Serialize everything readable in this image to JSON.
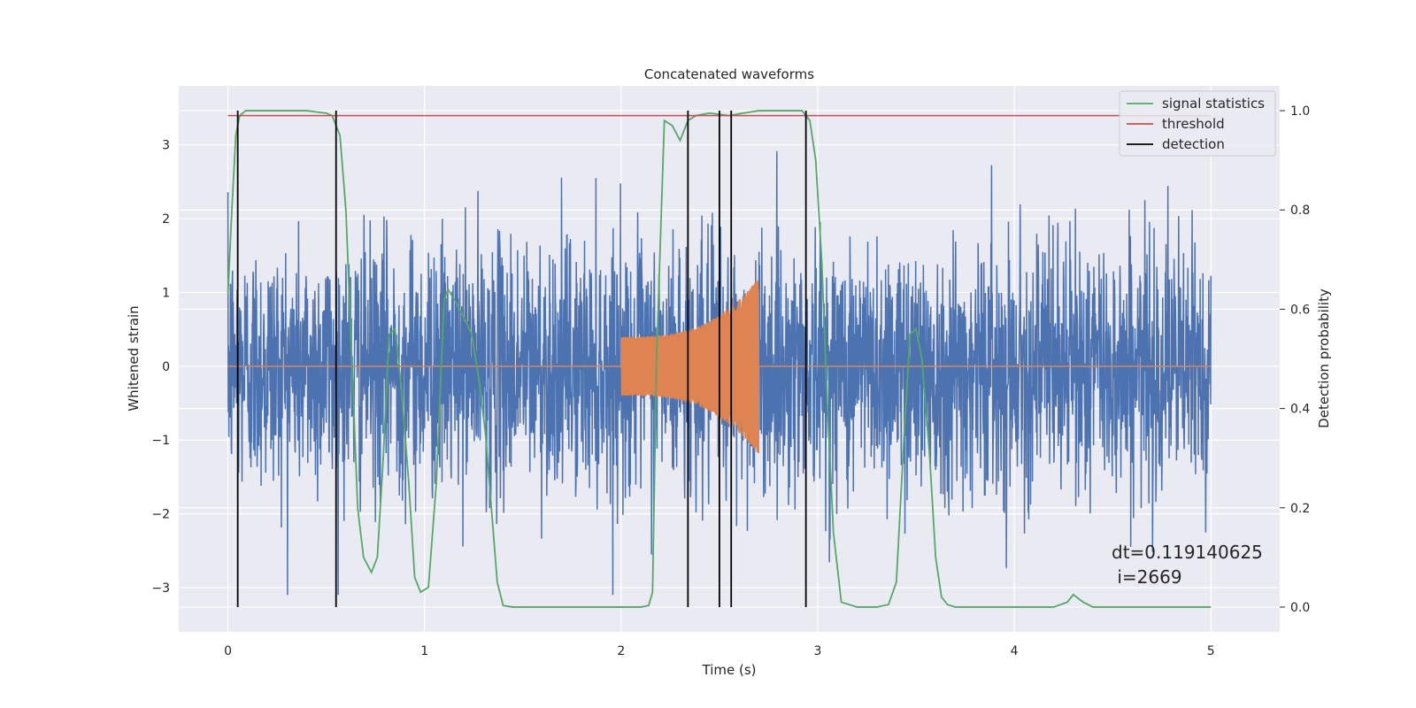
{
  "chart_data": {
    "type": "line",
    "title": "Concatenated waveforms",
    "xlabel": "Time (s)",
    "ylabel": "Whitened strain",
    "y2label": "Detection probability",
    "xlim": [
      -0.25,
      5.35
    ],
    "ylim": [
      -3.6,
      3.8
    ],
    "y2lim": [
      -0.05,
      1.05
    ],
    "xticks": [
      0,
      1,
      2,
      3,
      4,
      5
    ],
    "xtick_labels": [
      "0",
      "1",
      "2",
      "3",
      "4",
      "5"
    ],
    "yticks": [
      -3,
      -2,
      -1,
      0,
      1,
      2,
      3
    ],
    "ytick_labels": [
      "−3",
      "−2",
      "−1",
      "0",
      "1",
      "2",
      "3"
    ],
    "y2ticks": [
      0.0,
      0.2,
      0.4,
      0.6,
      0.8,
      1.0
    ],
    "y2tick_labels": [
      "0.0",
      "0.2",
      "0.4",
      "0.6",
      "0.8",
      "1.0"
    ],
    "grid": true,
    "legend_position": "top-right",
    "legend": [
      {
        "label": "signal statistics",
        "color": "#55a868"
      },
      {
        "label": "threshold",
        "color": "#c44e52"
      },
      {
        "label": "detection",
        "color": "#000000"
      }
    ],
    "series": [
      {
        "name": "whitened strain (noise)",
        "axis": "left",
        "color": "#4c72b0",
        "x_range": [
          0,
          5
        ],
        "kind": "noise",
        "std_approx": 0.85,
        "peak_approx": 3.1
      },
      {
        "name": "injected waveform",
        "axis": "left",
        "color": "#dd8452",
        "x_range": [
          2.0,
          2.7
        ],
        "kind": "chirp",
        "amplitude_start": 0.4,
        "amplitude_end": 1.2
      },
      {
        "name": "signal statistics",
        "axis": "right",
        "color": "#55a868",
        "x": [
          0.0,
          0.02,
          0.04,
          0.06,
          0.09,
          0.12,
          0.2,
          0.4,
          0.5,
          0.53,
          0.57,
          0.6,
          0.63,
          0.66,
          0.69,
          0.73,
          0.76,
          0.79,
          0.82,
          0.85,
          0.88,
          0.92,
          0.95,
          0.98,
          1.02,
          1.06,
          1.1,
          1.12,
          1.18,
          1.24,
          1.28,
          1.31,
          1.34,
          1.37,
          1.4,
          1.45,
          1.6,
          2.0,
          2.1,
          2.14,
          2.16,
          2.18,
          2.22,
          2.26,
          2.3,
          2.34,
          2.38,
          2.45,
          2.55,
          2.62,
          2.7,
          2.8,
          2.92,
          2.96,
          2.99,
          3.02,
          3.05,
          3.08,
          3.12,
          3.2,
          3.3,
          3.36,
          3.4,
          3.44,
          3.47,
          3.5,
          3.53,
          3.57,
          3.6,
          3.63,
          3.66,
          3.7,
          4.0,
          4.2,
          4.27,
          4.3,
          4.35,
          4.4,
          4.6,
          5.0
        ],
        "y": [
          0.63,
          0.8,
          0.95,
          0.99,
          1.0,
          1.0,
          1.0,
          1.0,
          0.995,
          0.99,
          0.95,
          0.8,
          0.5,
          0.2,
          0.1,
          0.07,
          0.1,
          0.3,
          0.55,
          0.56,
          0.45,
          0.25,
          0.06,
          0.03,
          0.04,
          0.25,
          0.62,
          0.64,
          0.6,
          0.55,
          0.45,
          0.35,
          0.2,
          0.05,
          0.003,
          0.0,
          0.0,
          0.0,
          0.0,
          0.003,
          0.03,
          0.5,
          0.98,
          0.97,
          0.94,
          0.98,
          0.99,
          0.995,
          0.99,
          0.995,
          1.0,
          1.0,
          1.0,
          0.98,
          0.9,
          0.7,
          0.4,
          0.15,
          0.01,
          0.0,
          0.0,
          0.005,
          0.05,
          0.35,
          0.55,
          0.56,
          0.5,
          0.3,
          0.1,
          0.02,
          0.005,
          0.0,
          0.0,
          0.0,
          0.01,
          0.025,
          0.01,
          0.0,
          0.0,
          0.0
        ]
      },
      {
        "name": "threshold",
        "axis": "right",
        "color": "#c44e52",
        "x": [
          0,
          5
        ],
        "y": [
          0.99,
          0.99
        ]
      }
    ],
    "detections": [
      0.05,
      0.55,
      2.34,
      2.5,
      2.56,
      2.94
    ],
    "detection_range": [
      0.0,
      1.0
    ],
    "annotation": {
      "line1": "dt=0.119140625",
      "line2": " i=2669"
    }
  }
}
